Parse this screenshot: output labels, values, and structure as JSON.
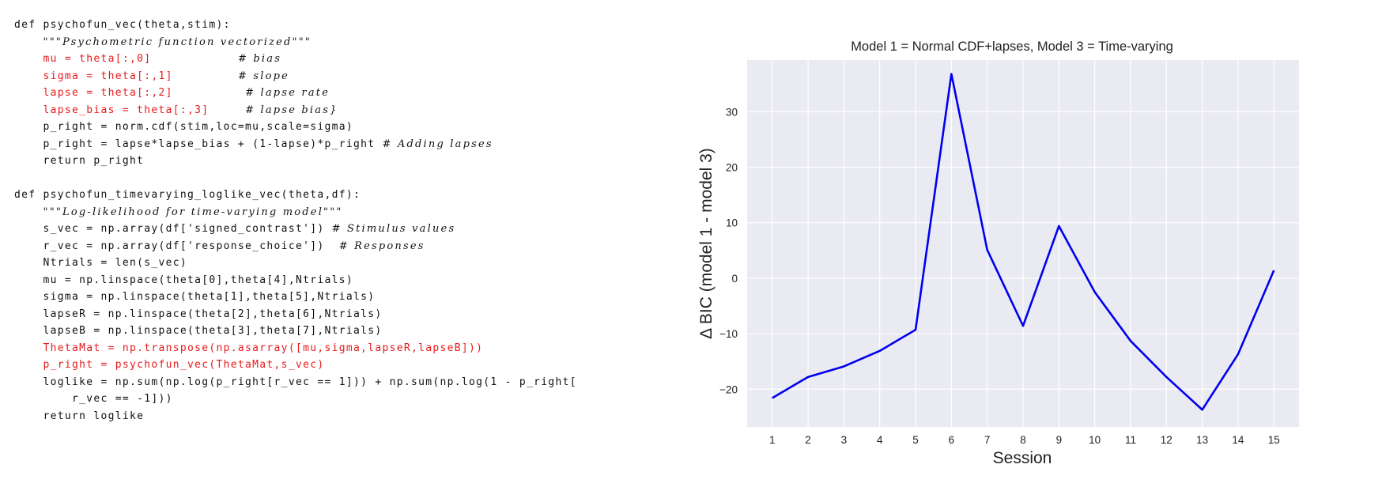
{
  "code": {
    "lines": [
      {
        "segments": [
          {
            "text": "def psychofun_vec(theta,stim):",
            "kind": "code"
          }
        ]
      },
      {
        "segments": [
          {
            "text": "    ",
            "kind": "code"
          },
          {
            "text": "\"\"\"Psychometric function vectorized\"\"\"",
            "kind": "comment"
          }
        ]
      },
      {
        "segments": [
          {
            "text": "    mu = theta[:,0]            ",
            "kind": "red"
          },
          {
            "text": "# bias",
            "kind": "comment"
          }
        ]
      },
      {
        "segments": [
          {
            "text": "    sigma = theta[:,1]         ",
            "kind": "red"
          },
          {
            "text": "# slope",
            "kind": "comment"
          }
        ]
      },
      {
        "segments": [
          {
            "text": "    lapse = theta[:,2]          ",
            "kind": "red"
          },
          {
            "text": "# lapse rate",
            "kind": "comment"
          }
        ]
      },
      {
        "segments": [
          {
            "text": "    lapse_bias = theta[:,3]     ",
            "kind": "red"
          },
          {
            "text": "# lapse bias}",
            "kind": "comment"
          }
        ]
      },
      {
        "segments": [
          {
            "text": "    p_right = norm.cdf(stim,loc=mu,scale=sigma)",
            "kind": "code"
          }
        ]
      },
      {
        "segments": [
          {
            "text": "    p_right = lapse*lapse_bias + (1-lapse)*p_right ",
            "kind": "code"
          },
          {
            "text": "# Adding lapses",
            "kind": "comment"
          }
        ]
      },
      {
        "segments": [
          {
            "text": "    return p_right",
            "kind": "code"
          }
        ]
      },
      {
        "segments": [
          {
            "text": "",
            "kind": "code"
          }
        ]
      },
      {
        "segments": [
          {
            "text": "def psychofun_timevarying_loglike_vec(theta,df):",
            "kind": "code"
          }
        ]
      },
      {
        "segments": [
          {
            "text": "    ",
            "kind": "code"
          },
          {
            "text": "\"\"\"Log-likelihood for time-varying model\"\"\"",
            "kind": "comment"
          }
        ]
      },
      {
        "segments": [
          {
            "text": "    s_vec = np.array(df['signed_contrast']) ",
            "kind": "code"
          },
          {
            "text": "# Stimulus values",
            "kind": "comment"
          }
        ]
      },
      {
        "segments": [
          {
            "text": "    r_vec = np.array(df['response_choice'])  ",
            "kind": "code"
          },
          {
            "text": "# Responses",
            "kind": "comment"
          }
        ]
      },
      {
        "segments": [
          {
            "text": "    Ntrials = len(s_vec)",
            "kind": "code"
          }
        ]
      },
      {
        "segments": [
          {
            "text": "    mu = np.linspace(theta[0],theta[4],Ntrials)",
            "kind": "code"
          }
        ]
      },
      {
        "segments": [
          {
            "text": "    sigma = np.linspace(theta[1],theta[5],Ntrials)",
            "kind": "code"
          }
        ]
      },
      {
        "segments": [
          {
            "text": "    lapseR = np.linspace(theta[2],theta[6],Ntrials)",
            "kind": "code"
          }
        ]
      },
      {
        "segments": [
          {
            "text": "    lapseB = np.linspace(theta[3],theta[7],Ntrials)",
            "kind": "code"
          }
        ]
      },
      {
        "segments": [
          {
            "text": "    ThetaMat = np.transpose(np.asarray([mu,sigma,lapseR,lapseB]))",
            "kind": "red"
          }
        ]
      },
      {
        "segments": [
          {
            "text": "    p_right = psychofun_vec(ThetaMat,s_vec)",
            "kind": "red"
          }
        ]
      },
      {
        "segments": [
          {
            "text": "    loglike = np.sum(np.log(p_right[r_vec == 1])) + np.sum(np.log(1 - p_right[",
            "kind": "code"
          }
        ]
      },
      {
        "segments": [
          {
            "text": "        r_vec == -1]))",
            "kind": "code"
          }
        ]
      },
      {
        "segments": [
          {
            "text": "    return loglike",
            "kind": "code"
          }
        ]
      }
    ]
  },
  "colors": {
    "code": "#111111",
    "red": "#e8191c",
    "comment": "#111111",
    "plot_bg": "#eaeaf2",
    "grid": "#ffffff",
    "line": "#0000ee"
  },
  "chart_data": {
    "type": "line",
    "title": "Model 1 = Normal CDF+lapses, Model 3 = Time-varying",
    "xlabel": "Session",
    "ylabel": "Δ BIC (model 1 - model 3)",
    "x": [
      1,
      2,
      3,
      4,
      5,
      6,
      7,
      8,
      9,
      10,
      11,
      12,
      13,
      14,
      15
    ],
    "series": [
      {
        "values": [
          -21.6,
          -17.8,
          -15.9,
          -13.1,
          -9.3,
          36.8,
          5.1,
          -8.6,
          9.4,
          -2.5,
          -11.3,
          -17.8,
          -23.7,
          -13.7,
          1.4
        ]
      }
    ],
    "xticks": [
      "1",
      "2",
      "3",
      "4",
      "5",
      "6",
      "7",
      "8",
      "9",
      "10",
      "11",
      "12",
      "13",
      "14",
      "15"
    ],
    "yticks": [
      -20,
      -10,
      0,
      10,
      20,
      30
    ],
    "ytick_labels": [
      "−20",
      "−10",
      "0",
      "10",
      "20",
      "30"
    ],
    "xlim": [
      0.3,
      15.7
    ],
    "ylim": [
      -26.8,
      39.3
    ],
    "grid": true,
    "style": "seaborn darkgrid"
  }
}
